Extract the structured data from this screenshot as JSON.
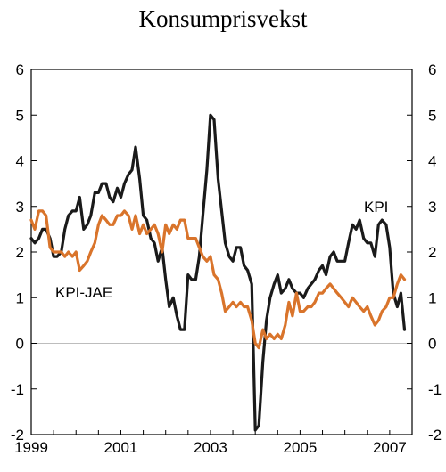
{
  "chart_data": {
    "type": "line",
    "title": "Konsumprisvekst",
    "xlabel": "",
    "ylabel": "",
    "xlim": [
      1999.0,
      2007.5
    ],
    "ylim": [
      -2,
      6
    ],
    "yticks": [
      "-2",
      "-1",
      "0",
      "1",
      "2",
      "3",
      "4",
      "5",
      "6"
    ],
    "xticks": [
      {
        "value": 1999,
        "label": "1999"
      },
      {
        "value": 2001,
        "label": "2001"
      },
      {
        "value": 2003,
        "label": "2003"
      },
      {
        "value": 2005,
        "label": "2005"
      },
      {
        "value": 2007,
        "label": "2007"
      }
    ],
    "grid": false,
    "zero_line": true,
    "series": [
      {
        "name": "KPI",
        "color": "#1a1a1a",
        "points": [
          [
            1999.0,
            2.3
          ],
          [
            1999.08,
            2.2
          ],
          [
            1999.17,
            2.3
          ],
          [
            1999.25,
            2.5
          ],
          [
            1999.33,
            2.5
          ],
          [
            1999.42,
            2.3
          ],
          [
            1999.5,
            1.9
          ],
          [
            1999.58,
            1.9
          ],
          [
            1999.67,
            2.0
          ],
          [
            1999.75,
            2.5
          ],
          [
            1999.83,
            2.8
          ],
          [
            1999.92,
            2.9
          ],
          [
            2000.0,
            2.9
          ],
          [
            2000.08,
            3.2
          ],
          [
            2000.17,
            2.5
          ],
          [
            2000.25,
            2.6
          ],
          [
            2000.33,
            2.8
          ],
          [
            2000.42,
            3.3
          ],
          [
            2000.5,
            3.3
          ],
          [
            2000.58,
            3.5
          ],
          [
            2000.67,
            3.5
          ],
          [
            2000.75,
            3.2
          ],
          [
            2000.83,
            3.1
          ],
          [
            2000.92,
            3.4
          ],
          [
            2001.0,
            3.2
          ],
          [
            2001.08,
            3.5
          ],
          [
            2001.17,
            3.7
          ],
          [
            2001.25,
            3.8
          ],
          [
            2001.33,
            4.3
          ],
          [
            2001.42,
            3.6
          ],
          [
            2001.5,
            2.8
          ],
          [
            2001.58,
            2.7
          ],
          [
            2001.67,
            2.3
          ],
          [
            2001.75,
            2.2
          ],
          [
            2001.83,
            1.8
          ],
          [
            2001.92,
            2.1
          ],
          [
            2002.0,
            1.4
          ],
          [
            2002.08,
            0.8
          ],
          [
            2002.17,
            1.0
          ],
          [
            2002.25,
            0.6
          ],
          [
            2002.33,
            0.3
          ],
          [
            2002.42,
            0.3
          ],
          [
            2002.5,
            1.5
          ],
          [
            2002.58,
            1.4
          ],
          [
            2002.67,
            1.4
          ],
          [
            2002.75,
            1.9
          ],
          [
            2002.83,
            2.8
          ],
          [
            2002.92,
            3.8
          ],
          [
            2003.0,
            5.0
          ],
          [
            2003.08,
            4.9
          ],
          [
            2003.17,
            3.6
          ],
          [
            2003.25,
            2.9
          ],
          [
            2003.33,
            2.2
          ],
          [
            2003.42,
            1.9
          ],
          [
            2003.5,
            1.8
          ],
          [
            2003.58,
            2.1
          ],
          [
            2003.67,
            2.1
          ],
          [
            2003.75,
            1.7
          ],
          [
            2003.83,
            1.6
          ],
          [
            2003.92,
            1.3
          ],
          [
            2004.0,
            -1.9
          ],
          [
            2004.08,
            -1.8
          ],
          [
            2004.17,
            -0.4
          ],
          [
            2004.25,
            0.5
          ],
          [
            2004.33,
            1.0
          ],
          [
            2004.42,
            1.3
          ],
          [
            2004.5,
            1.5
          ],
          [
            2004.58,
            1.1
          ],
          [
            2004.67,
            1.2
          ],
          [
            2004.75,
            1.4
          ],
          [
            2004.83,
            1.2
          ],
          [
            2004.92,
            1.1
          ],
          [
            2005.0,
            1.1
          ],
          [
            2005.08,
            1.0
          ],
          [
            2005.17,
            1.2
          ],
          [
            2005.25,
            1.3
          ],
          [
            2005.33,
            1.4
          ],
          [
            2005.42,
            1.6
          ],
          [
            2005.5,
            1.7
          ],
          [
            2005.58,
            1.5
          ],
          [
            2005.67,
            1.9
          ],
          [
            2005.75,
            2.0
          ],
          [
            2005.83,
            1.8
          ],
          [
            2005.92,
            1.8
          ],
          [
            2006.0,
            1.8
          ],
          [
            2006.08,
            2.2
          ],
          [
            2006.17,
            2.6
          ],
          [
            2006.25,
            2.5
          ],
          [
            2006.33,
            2.7
          ],
          [
            2006.42,
            2.3
          ],
          [
            2006.5,
            2.2
          ],
          [
            2006.58,
            2.2
          ],
          [
            2006.67,
            1.9
          ],
          [
            2006.75,
            2.6
          ],
          [
            2006.83,
            2.7
          ],
          [
            2006.92,
            2.6
          ],
          [
            2007.0,
            2.1
          ],
          [
            2007.08,
            1.1
          ],
          [
            2007.17,
            0.8
          ],
          [
            2007.25,
            1.1
          ],
          [
            2007.33,
            0.3
          ]
        ]
      },
      {
        "name": "KPI-JAE",
        "color": "#d9742b",
        "points": [
          [
            1999.0,
            2.7
          ],
          [
            1999.08,
            2.5
          ],
          [
            1999.17,
            2.9
          ],
          [
            1999.25,
            2.9
          ],
          [
            1999.33,
            2.8
          ],
          [
            1999.42,
            2.1
          ],
          [
            1999.5,
            2.0
          ],
          [
            1999.58,
            2.0
          ],
          [
            1999.67,
            2.0
          ],
          [
            1999.75,
            1.9
          ],
          [
            1999.83,
            2.0
          ],
          [
            1999.92,
            1.9
          ],
          [
            2000.0,
            2.0
          ],
          [
            2000.08,
            1.6
          ],
          [
            2000.17,
            1.7
          ],
          [
            2000.25,
            1.8
          ],
          [
            2000.33,
            2.0
          ],
          [
            2000.42,
            2.2
          ],
          [
            2000.5,
            2.6
          ],
          [
            2000.58,
            2.8
          ],
          [
            2000.67,
            2.7
          ],
          [
            2000.75,
            2.6
          ],
          [
            2000.83,
            2.6
          ],
          [
            2000.92,
            2.8
          ],
          [
            2001.0,
            2.8
          ],
          [
            2001.08,
            2.9
          ],
          [
            2001.17,
            2.8
          ],
          [
            2001.25,
            2.5
          ],
          [
            2001.33,
            2.8
          ],
          [
            2001.42,
            2.4
          ],
          [
            2001.5,
            2.6
          ],
          [
            2001.58,
            2.4
          ],
          [
            2001.67,
            2.5
          ],
          [
            2001.75,
            2.6
          ],
          [
            2001.83,
            2.4
          ],
          [
            2001.92,
            2.0
          ],
          [
            2002.0,
            2.6
          ],
          [
            2002.08,
            2.4
          ],
          [
            2002.17,
            2.6
          ],
          [
            2002.25,
            2.5
          ],
          [
            2002.33,
            2.7
          ],
          [
            2002.42,
            2.7
          ],
          [
            2002.5,
            2.3
          ],
          [
            2002.58,
            2.3
          ],
          [
            2002.67,
            2.3
          ],
          [
            2002.75,
            2.1
          ],
          [
            2002.83,
            1.9
          ],
          [
            2002.92,
            1.8
          ],
          [
            2003.0,
            1.9
          ],
          [
            2003.08,
            1.5
          ],
          [
            2003.17,
            1.4
          ],
          [
            2003.25,
            1.1
          ],
          [
            2003.33,
            0.7
          ],
          [
            2003.42,
            0.8
          ],
          [
            2003.5,
            0.9
          ],
          [
            2003.58,
            0.8
          ],
          [
            2003.67,
            0.9
          ],
          [
            2003.75,
            0.8
          ],
          [
            2003.83,
            0.8
          ],
          [
            2003.92,
            0.5
          ],
          [
            2004.0,
            0.0
          ],
          [
            2004.08,
            -0.1
          ],
          [
            2004.17,
            0.3
          ],
          [
            2004.25,
            0.1
          ],
          [
            2004.33,
            0.2
          ],
          [
            2004.42,
            0.1
          ],
          [
            2004.5,
            0.2
          ],
          [
            2004.58,
            0.1
          ],
          [
            2004.67,
            0.4
          ],
          [
            2004.75,
            0.9
          ],
          [
            2004.83,
            0.6
          ],
          [
            2004.92,
            1.1
          ],
          [
            2005.0,
            0.7
          ],
          [
            2005.08,
            0.7
          ],
          [
            2005.17,
            0.8
          ],
          [
            2005.25,
            0.8
          ],
          [
            2005.33,
            0.9
          ],
          [
            2005.42,
            1.1
          ],
          [
            2005.5,
            1.1
          ],
          [
            2005.58,
            1.2
          ],
          [
            2005.67,
            1.3
          ],
          [
            2005.75,
            1.2
          ],
          [
            2005.83,
            1.1
          ],
          [
            2005.92,
            1.0
          ],
          [
            2006.0,
            0.9
          ],
          [
            2006.08,
            0.8
          ],
          [
            2006.17,
            1.0
          ],
          [
            2006.25,
            0.9
          ],
          [
            2006.33,
            0.8
          ],
          [
            2006.42,
            0.7
          ],
          [
            2006.5,
            0.8
          ],
          [
            2006.58,
            0.6
          ],
          [
            2006.67,
            0.4
          ],
          [
            2006.75,
            0.5
          ],
          [
            2006.83,
            0.7
          ],
          [
            2006.92,
            0.8
          ],
          [
            2007.0,
            1.0
          ],
          [
            2007.08,
            1.0
          ],
          [
            2007.17,
            1.3
          ],
          [
            2007.25,
            1.5
          ],
          [
            2007.33,
            1.4
          ]
        ]
      }
    ],
    "series_labels": [
      {
        "text": "KPI",
        "series": "KPI"
      },
      {
        "text": "KPI-JAE",
        "series": "KPI-JAE"
      }
    ]
  }
}
